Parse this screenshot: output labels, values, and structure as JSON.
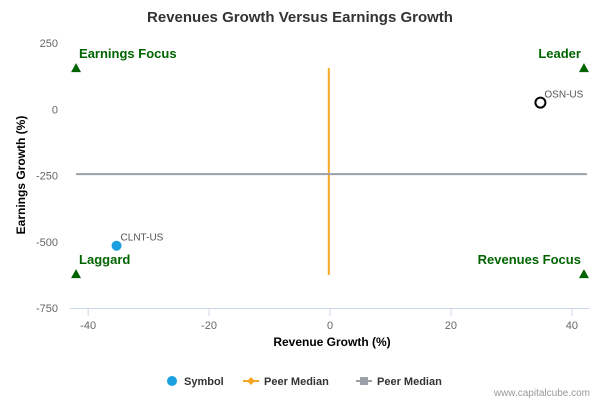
{
  "chart_data": {
    "type": "scatter",
    "title": "Revenues Growth Versus Earnings Growth",
    "xlabel": "Revenue Growth (%)",
    "ylabel": "Earnings Growth (%)",
    "xlim": [
      -43,
      43
    ],
    "ylim": [
      -750,
      250
    ],
    "xticks": [
      -40,
      -20,
      0,
      20,
      40
    ],
    "xtick_labels": [
      "-40",
      "-20",
      "0",
      "20",
      "40"
    ],
    "yticks": [
      250,
      0,
      -250,
      -500,
      -750
    ],
    "ytick_labels": [
      "250",
      "0",
      "-250",
      "-500",
      "-750"
    ],
    "grid": false,
    "points": [
      {
        "label": "OSN-US",
        "x": 34.8,
        "y": 25,
        "style": "hollow",
        "color": "#000000"
      },
      {
        "label": "CLNT-US",
        "x": -35.3,
        "y": -515,
        "style": "filled",
        "color": "#1a9fe0"
      }
    ],
    "peer_median_lines": [
      {
        "orientation": "vertical",
        "x": -0.2,
        "y_from": -625,
        "y_to": 155,
        "color": "#f5a623"
      },
      {
        "orientation": "horizontal",
        "y": -245,
        "x_from": -42,
        "x_to": 42.5,
        "color": "#9aa0a8"
      }
    ],
    "quadrant_labels": [
      {
        "text": "Earnings Focus",
        "x": -42,
        "y": 155,
        "align": "start"
      },
      {
        "text": "Leader",
        "x": 42,
        "y": 155,
        "align": "end"
      },
      {
        "text": "Laggard",
        "x": -42,
        "y": -622,
        "align": "start"
      },
      {
        "text": "Revenues Focus",
        "x": 42,
        "y": -622,
        "align": "end"
      }
    ],
    "legend": {
      "placement": "bottom-center",
      "items": [
        {
          "label": "Symbol",
          "marker": "circle",
          "color": "#1a9fe0"
        },
        {
          "label": "Peer Median",
          "marker": "line-diamond",
          "color": "#f5a623"
        },
        {
          "label": "Peer Median",
          "marker": "line-square",
          "color": "#9aa0a8"
        }
      ]
    },
    "marker_color": "#006400",
    "credit": "www.capitalcube.com"
  }
}
